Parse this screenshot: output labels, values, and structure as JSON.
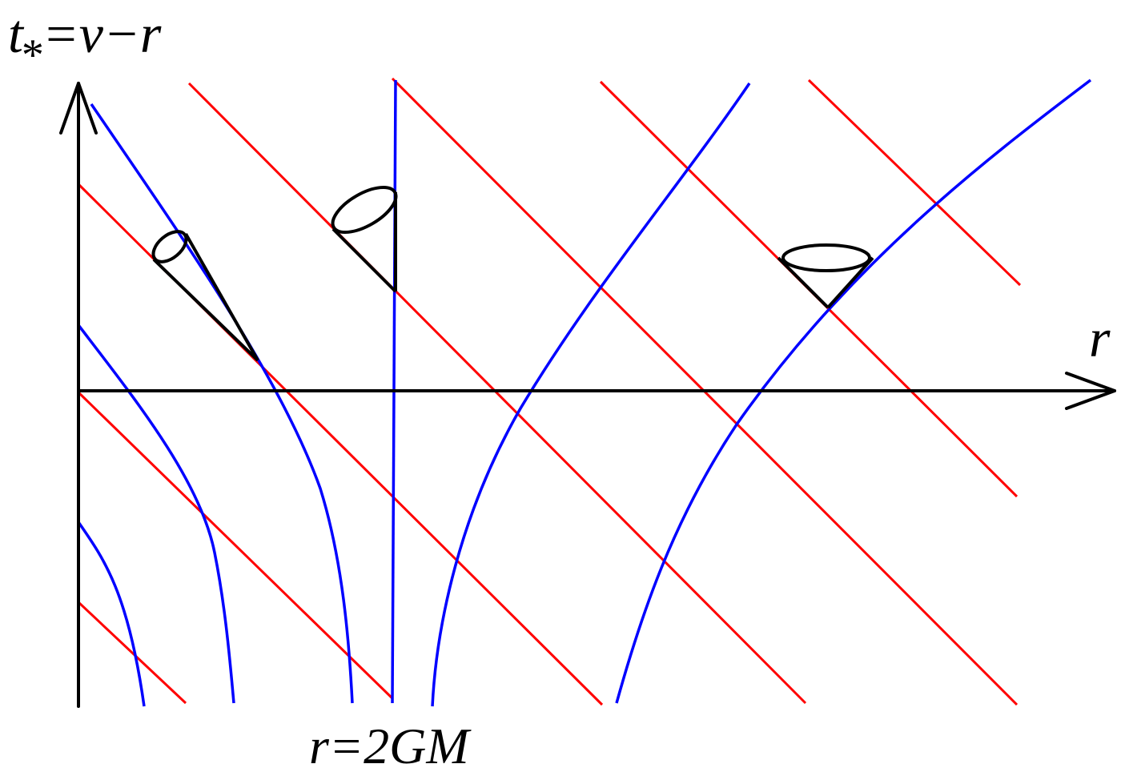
{
  "labels": {
    "vertical_axis_prefix": "t",
    "vertical_axis_subscript": "*",
    "vertical_axis_suffix": "=v−r",
    "horizontal_axis": "r",
    "horizon": "r=2GM"
  },
  "colors": {
    "axes": "#000000",
    "ingoing_null_rays": "#ff0000",
    "outgoing_null_rays": "#0000ff",
    "light_cones": "#000000"
  }
}
